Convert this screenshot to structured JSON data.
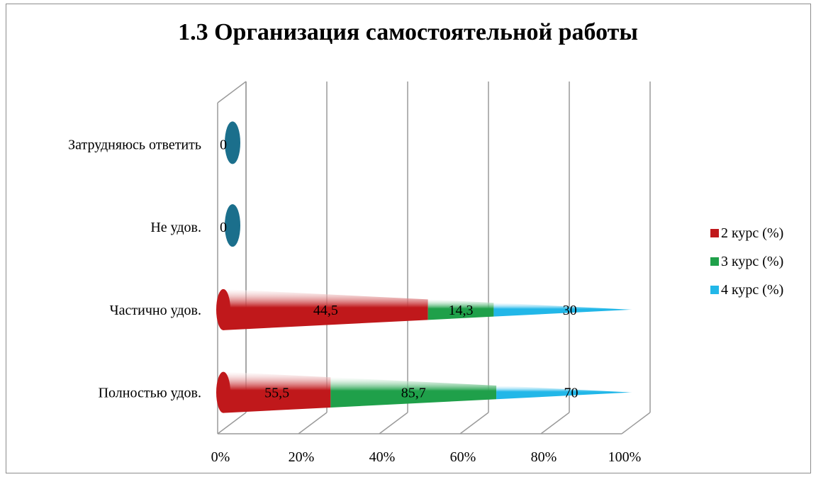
{
  "chart_data": {
    "type": "bar",
    "stacked": "percent",
    "orientation": "horizontal",
    "shape": "cone",
    "title": "1.3 Организация самостоятельной работы",
    "categories": [
      "Полностью удов.",
      "Частично удов.",
      "Не удов.",
      "Затрудняюсь ответить"
    ],
    "series": [
      {
        "name": "2 курс (%)",
        "values": [
          55.5,
          44.5,
          0,
          0
        ],
        "labels": [
          "55,5",
          "44,5",
          "0",
          "0"
        ],
        "color": "#c0181b"
      },
      {
        "name": "3 курс (%)",
        "values": [
          85.7,
          14.3,
          0,
          0
        ],
        "labels": [
          "85,7",
          "14,3",
          "",
          ""
        ],
        "color": "#1fa04a"
      },
      {
        "name": "4 курс (%)",
        "values": [
          70,
          30,
          0,
          0
        ],
        "labels": [
          "70",
          "30",
          "",
          ""
        ],
        "color": "#22b7e8"
      }
    ],
    "xlim": [
      0,
      100
    ],
    "ticks": [
      "0%",
      "20%",
      "40%",
      "60%",
      "80%",
      "100%"
    ],
    "legend_position": "right",
    "grid": true,
    "zero_value_color": "#1b6f8c"
  }
}
